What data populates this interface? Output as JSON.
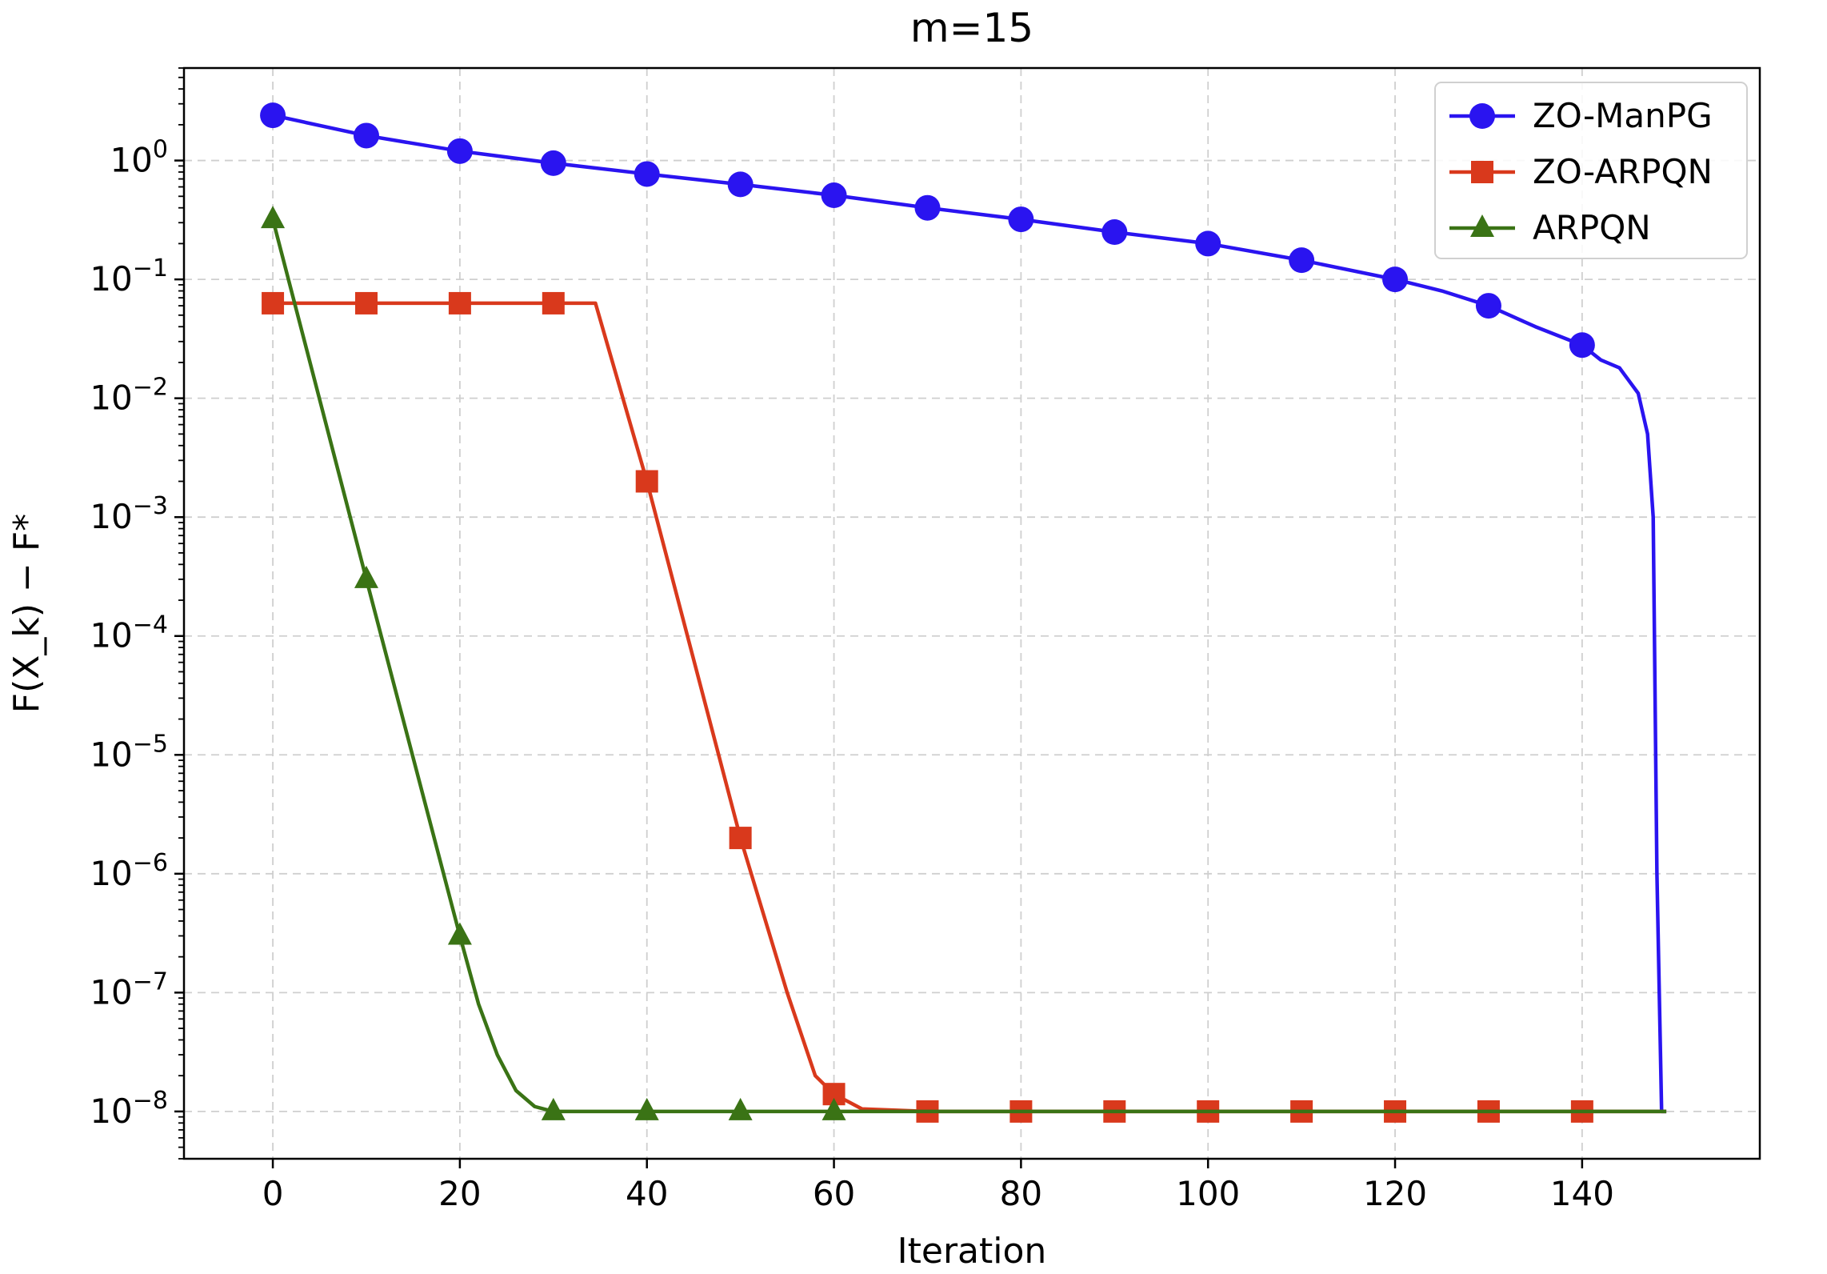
{
  "chart_data": {
    "type": "line",
    "title": "m=15",
    "xlabel": "Iteration",
    "ylabel": "F(X_k) − F*",
    "x_scale": "linear",
    "y_scale": "log",
    "xlim": [
      -9.5,
      159
    ],
    "ylim": [
      4e-09,
      6.0
    ],
    "x_ticks": [
      {
        "value": 0,
        "label": "0"
      },
      {
        "value": 20,
        "label": "20"
      },
      {
        "value": 40,
        "label": "40"
      },
      {
        "value": 60,
        "label": "60"
      },
      {
        "value": 80,
        "label": "80"
      },
      {
        "value": 100,
        "label": "100"
      },
      {
        "value": 120,
        "label": "120"
      },
      {
        "value": 140,
        "label": "140"
      }
    ],
    "y_ticks": [
      {
        "value": 1.0,
        "base": "10",
        "exp": "0"
      },
      {
        "value": 0.1,
        "base": "10",
        "exp": "−1"
      },
      {
        "value": 0.01,
        "base": "10",
        "exp": "−2"
      },
      {
        "value": 0.001,
        "base": "10",
        "exp": "−3"
      },
      {
        "value": 0.0001,
        "base": "10",
        "exp": "−4"
      },
      {
        "value": 1e-05,
        "base": "10",
        "exp": "−5"
      },
      {
        "value": 1e-06,
        "base": "10",
        "exp": "−6"
      },
      {
        "value": 1e-07,
        "base": "10",
        "exp": "−7"
      },
      {
        "value": 1e-08,
        "base": "10",
        "exp": "−8"
      }
    ],
    "grid": true,
    "legend_position": "top-right",
    "series": [
      {
        "name": "ZO-ManPG",
        "color": "#2a14f0",
        "marker": "circle",
        "line": [
          [
            0,
            2.4
          ],
          [
            10,
            1.62
          ],
          [
            20,
            1.2
          ],
          [
            30,
            0.95
          ],
          [
            40,
            0.77
          ],
          [
            50,
            0.63
          ],
          [
            60,
            0.51
          ],
          [
            70,
            0.4
          ],
          [
            80,
            0.32
          ],
          [
            90,
            0.25
          ],
          [
            100,
            0.2
          ],
          [
            110,
            0.145
          ],
          [
            120,
            0.1
          ],
          [
            125,
            0.08
          ],
          [
            130,
            0.06
          ],
          [
            135,
            0.04
          ],
          [
            140,
            0.028
          ],
          [
            142,
            0.021
          ],
          [
            144,
            0.018
          ],
          [
            146,
            0.011
          ],
          [
            147,
            0.005
          ],
          [
            147.6,
            0.001
          ],
          [
            148,
            1e-06
          ],
          [
            148.5,
            1e-08
          ],
          [
            149,
            1e-08
          ]
        ],
        "markers": [
          [
            0,
            2.4
          ],
          [
            10,
            1.62
          ],
          [
            20,
            1.2
          ],
          [
            30,
            0.95
          ],
          [
            40,
            0.77
          ],
          [
            50,
            0.63
          ],
          [
            60,
            0.51
          ],
          [
            70,
            0.4
          ],
          [
            80,
            0.32
          ],
          [
            90,
            0.25
          ],
          [
            100,
            0.2
          ],
          [
            110,
            0.145
          ],
          [
            120,
            0.1
          ],
          [
            130,
            0.06
          ],
          [
            140,
            0.028
          ]
        ]
      },
      {
        "name": "ZO-ARPQN",
        "color": "#d9391c",
        "marker": "square",
        "line": [
          [
            0,
            0.063
          ],
          [
            10,
            0.063
          ],
          [
            20,
            0.063
          ],
          [
            30,
            0.063
          ],
          [
            34.5,
            0.063
          ],
          [
            40,
            0.002
          ],
          [
            50,
            2e-06
          ],
          [
            55,
            1e-07
          ],
          [
            58,
            2e-08
          ],
          [
            60,
            1.4e-08
          ],
          [
            63,
            1.05e-08
          ],
          [
            70,
            1e-08
          ],
          [
            149,
            1e-08
          ]
        ],
        "markers": [
          [
            0,
            0.063
          ],
          [
            10,
            0.063
          ],
          [
            20,
            0.063
          ],
          [
            30,
            0.063
          ],
          [
            40,
            0.002
          ],
          [
            50,
            2e-06
          ],
          [
            60,
            1.4e-08
          ],
          [
            70,
            1e-08
          ],
          [
            80,
            1e-08
          ],
          [
            90,
            1e-08
          ],
          [
            100,
            1e-08
          ],
          [
            110,
            1e-08
          ],
          [
            120,
            1e-08
          ],
          [
            130,
            1e-08
          ],
          [
            140,
            1e-08
          ]
        ]
      },
      {
        "name": "ARPQN",
        "color": "#3a7315",
        "marker": "triangle",
        "line": [
          [
            0,
            0.32
          ],
          [
            10,
            0.0003
          ],
          [
            20,
            3e-07
          ],
          [
            22,
            8e-08
          ],
          [
            24,
            3e-08
          ],
          [
            26,
            1.5e-08
          ],
          [
            28,
            1.1e-08
          ],
          [
            30,
            1e-08
          ],
          [
            149,
            1e-08
          ]
        ],
        "markers": [
          [
            0,
            0.32
          ],
          [
            10,
            0.0003
          ],
          [
            20,
            3e-07
          ],
          [
            30,
            1e-08
          ],
          [
            40,
            1e-08
          ],
          [
            50,
            1e-08
          ],
          [
            60,
            1e-08
          ]
        ]
      }
    ]
  }
}
